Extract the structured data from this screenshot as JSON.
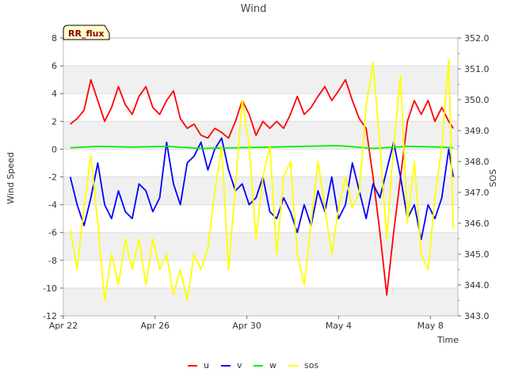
{
  "chart_data": {
    "type": "line",
    "title": "Wind",
    "xlabel": "Time",
    "ylabel": "Wind Speed",
    "y2label": "SOS",
    "badge": "RR_flux",
    "x_tick_labels": [
      "Apr 22",
      "Apr 26",
      "Apr 30",
      "May 4",
      "May 8"
    ],
    "x_ticks_day": [
      0,
      4,
      8,
      12,
      16
    ],
    "xlim": [
      0,
      17.2
    ],
    "ylim": [
      -12,
      8
    ],
    "y_ticks": [
      -12,
      -10,
      -8,
      -6,
      -4,
      -2,
      0,
      2,
      4,
      6,
      8
    ],
    "y2lim": [
      343.0,
      352.0
    ],
    "y2_ticks": [
      343.0,
      344.0,
      345.0,
      346.0,
      347.0,
      348.0,
      349.0,
      350.0,
      351.0,
      352.0
    ],
    "grid": "horizontal bands",
    "legend_position": "bottom-center",
    "series": [
      {
        "name": "u",
        "color": "#ff0000",
        "axis": "left",
        "x": [
          0.3,
          0.6,
          0.9,
          1.2,
          1.5,
          1.8,
          2.1,
          2.4,
          2.7,
          3.0,
          3.3,
          3.6,
          3.9,
          4.2,
          4.5,
          4.8,
          5.1,
          5.4,
          5.7,
          6.0,
          6.3,
          6.6,
          6.9,
          7.2,
          7.5,
          7.8,
          8.1,
          8.4,
          8.7,
          9.0,
          9.3,
          9.6,
          9.9,
          10.2,
          10.5,
          10.8,
          11.1,
          11.4,
          11.7,
          12.0,
          12.3,
          12.6,
          12.9,
          13.2,
          13.5,
          13.8,
          14.1,
          14.4,
          14.7,
          15.0,
          15.3,
          15.6,
          15.9,
          16.2,
          16.5,
          16.8,
          17.0
        ],
        "values": [
          1.8,
          2.2,
          2.8,
          5.0,
          3.5,
          2.0,
          3.0,
          4.5,
          3.2,
          2.5,
          3.8,
          4.5,
          3.0,
          2.5,
          3.5,
          4.2,
          2.2,
          1.5,
          1.8,
          1.0,
          0.8,
          1.5,
          1.2,
          0.8,
          2.0,
          3.5,
          2.5,
          1.0,
          2.0,
          1.5,
          2.0,
          1.5,
          2.5,
          3.8,
          2.5,
          3.0,
          3.8,
          4.5,
          3.5,
          4.2,
          5.0,
          3.5,
          2.2,
          1.5,
          -2.0,
          -6.0,
          -10.5,
          -6.0,
          -2.0,
          2.0,
          3.5,
          2.5,
          3.5,
          2.0,
          3.0,
          2.0,
          1.5
        ]
      },
      {
        "name": "v",
        "color": "#0000ff",
        "axis": "left",
        "x": [
          0.3,
          0.6,
          0.9,
          1.2,
          1.5,
          1.8,
          2.1,
          2.4,
          2.7,
          3.0,
          3.3,
          3.6,
          3.9,
          4.2,
          4.5,
          4.8,
          5.1,
          5.4,
          5.7,
          6.0,
          6.3,
          6.6,
          6.9,
          7.2,
          7.5,
          7.8,
          8.1,
          8.4,
          8.7,
          9.0,
          9.3,
          9.6,
          9.9,
          10.2,
          10.5,
          10.8,
          11.1,
          11.4,
          11.7,
          12.0,
          12.3,
          12.6,
          12.9,
          13.2,
          13.5,
          13.8,
          14.1,
          14.4,
          14.7,
          15.0,
          15.3,
          15.6,
          15.9,
          16.2,
          16.5,
          16.8,
          17.0
        ],
        "values": [
          -2.0,
          -4.0,
          -5.5,
          -3.5,
          -1.0,
          -4.0,
          -5.0,
          -3.0,
          -4.5,
          -5.0,
          -2.5,
          -3.0,
          -4.5,
          -3.5,
          0.5,
          -2.5,
          -4.0,
          -1.0,
          -0.5,
          0.5,
          -1.5,
          0.0,
          0.8,
          -1.5,
          -3.0,
          -2.5,
          -4.0,
          -3.5,
          -2.0,
          -4.5,
          -5.0,
          -3.5,
          -4.5,
          -6.0,
          -4.0,
          -5.5,
          -3.0,
          -4.5,
          -2.0,
          -5.0,
          -4.0,
          -1.0,
          -3.0,
          -5.0,
          -2.5,
          -3.5,
          -1.5,
          0.5,
          -2.0,
          -5.0,
          -4.0,
          -6.5,
          -4.0,
          -5.0,
          -3.5,
          0.0,
          -2.0
        ]
      },
      {
        "name": "w",
        "color": "#00ee00",
        "axis": "left",
        "x": [
          0.3,
          1.5,
          3.0,
          4.5,
          6.0,
          7.5,
          9.0,
          10.5,
          12.0,
          13.5,
          15.0,
          16.5,
          17.0
        ],
        "values": [
          0.1,
          0.2,
          0.15,
          0.2,
          0.05,
          0.1,
          0.15,
          0.2,
          0.25,
          0.05,
          0.2,
          0.15,
          0.1
        ]
      },
      {
        "name": "sos",
        "color": "#ffff00",
        "axis": "right",
        "x": [
          0.3,
          0.6,
          0.9,
          1.2,
          1.5,
          1.8,
          2.1,
          2.4,
          2.7,
          3.0,
          3.3,
          3.6,
          3.9,
          4.2,
          4.5,
          4.8,
          5.1,
          5.4,
          5.7,
          6.0,
          6.3,
          6.6,
          6.9,
          7.2,
          7.5,
          7.8,
          8.1,
          8.4,
          8.7,
          9.0,
          9.3,
          9.6,
          9.9,
          10.2,
          10.5,
          10.8,
          11.1,
          11.4,
          11.7,
          12.0,
          12.3,
          12.6,
          12.9,
          13.2,
          13.5,
          13.8,
          14.1,
          14.4,
          14.7,
          15.0,
          15.3,
          15.6,
          15.9,
          16.2,
          16.5,
          16.8,
          17.0
        ],
        "values": [
          345.8,
          344.5,
          346.5,
          348.2,
          346.0,
          343.5,
          345.0,
          344.0,
          345.5,
          344.5,
          345.5,
          344.0,
          345.5,
          344.5,
          345.0,
          343.7,
          344.5,
          343.5,
          345.0,
          344.5,
          345.2,
          347.0,
          348.5,
          344.5,
          347.2,
          350.0,
          348.5,
          345.5,
          347.5,
          348.5,
          345.0,
          347.5,
          348.0,
          345.0,
          344.0,
          346.0,
          348.0,
          346.5,
          345.0,
          346.5,
          347.5,
          346.5,
          347.0,
          349.8,
          351.2,
          348.5,
          345.5,
          348.5,
          350.8,
          346.0,
          348.0,
          345.0,
          344.5,
          346.8,
          348.5,
          351.3,
          345.8
        ]
      }
    ]
  }
}
